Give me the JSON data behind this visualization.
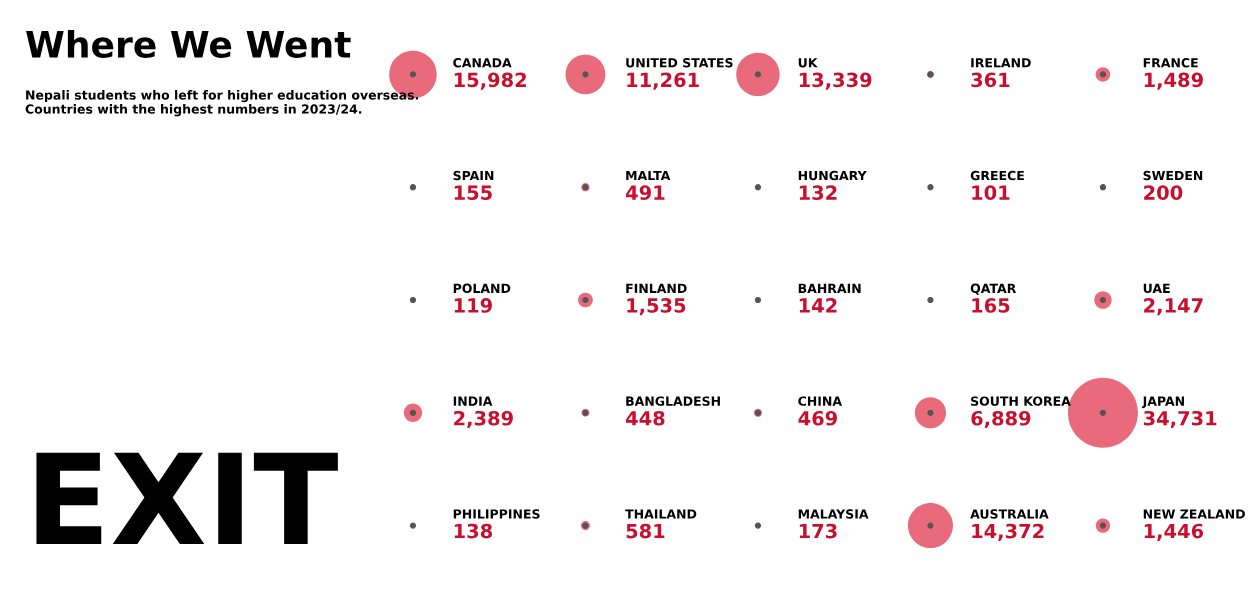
{
  "chart_data": {
    "type": "other",
    "title": "Where We Went",
    "subtitle": "Nepali students who left for higher education overseas.\nCountries with the highest numbers in 2023/24.",
    "categories": [
      "CANADA",
      "UNITED STATES",
      "UK",
      "IRELAND",
      "FRANCE",
      "SPAIN",
      "MALTA",
      "HUNGARY",
      "GREECE",
      "SWEDEN",
      "POLAND",
      "FINLAND",
      "BAHRAIN",
      "QATAR",
      "UAE",
      "INDIA",
      "BANGLADESH",
      "CHINA",
      "SOUTH KOREA",
      "JAPAN",
      "PHILIPPINES",
      "THAILAND",
      "MALAYSIA",
      "AUSTRALIA",
      "NEW ZEALAND"
    ],
    "values": [
      15982,
      11261,
      13339,
      361,
      1489,
      155,
      491,
      132,
      101,
      200,
      119,
      1535,
      142,
      165,
      2147,
      2389,
      448,
      469,
      6889,
      34731,
      138,
      581,
      173,
      14372,
      1446
    ],
    "value_labels": [
      "15,982",
      "11,261",
      "13,339",
      "361",
      "1,489",
      "155",
      "491",
      "132",
      "101",
      "200",
      "119",
      "1,535",
      "142",
      "165",
      "2,147",
      "2,389",
      "448",
      "469",
      "6,889",
      "34,731",
      "138",
      "581",
      "173",
      "14,372",
      "1,446"
    ],
    "color": "#e23a4f",
    "annotations": [
      "EXIT"
    ]
  }
}
